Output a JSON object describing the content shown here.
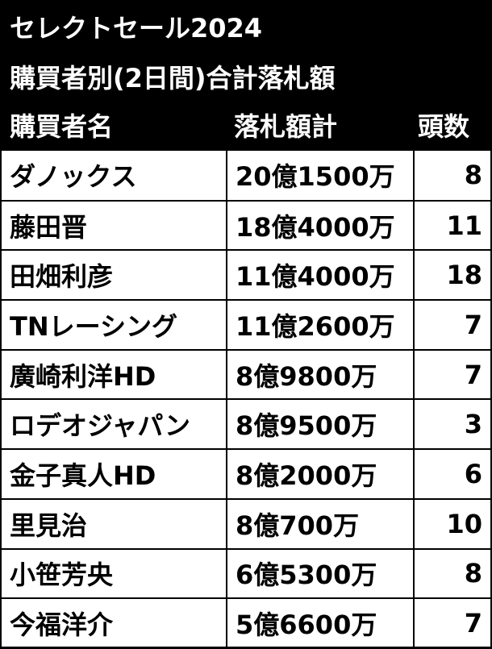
{
  "header": {
    "title": "セレクトセール2024",
    "subtitle": "購買者別(2日間)合計落札額",
    "columns": [
      "購買者名",
      "落札額計",
      "頭数"
    ]
  },
  "rows": [
    {
      "name": "ダノックス",
      "amount": "20億1500万",
      "count": "8"
    },
    {
      "name": "藤田晋",
      "amount": "18億4000万",
      "count": "11"
    },
    {
      "name": "田畑利彦",
      "amount": "11億4000万",
      "count": "18"
    },
    {
      "name": "TNレーシング",
      "amount": "11億2600万",
      "count": "7"
    },
    {
      "name": "廣崎利洋HD",
      "amount": "8億9800万",
      "count": "7"
    },
    {
      "name": "ロデオジャパン",
      "amount": "8億9500万",
      "count": "3"
    },
    {
      "name": "金子真人HD",
      "amount": "8億2000万",
      "count": "6"
    },
    {
      "name": "里見治",
      "amount": "8億700万",
      "count": "10"
    },
    {
      "name": "小笹芳央",
      "amount": "6億5300万",
      "count": "8"
    },
    {
      "name": "今福洋介",
      "amount": "5億6600万",
      "count": "7"
    }
  ]
}
